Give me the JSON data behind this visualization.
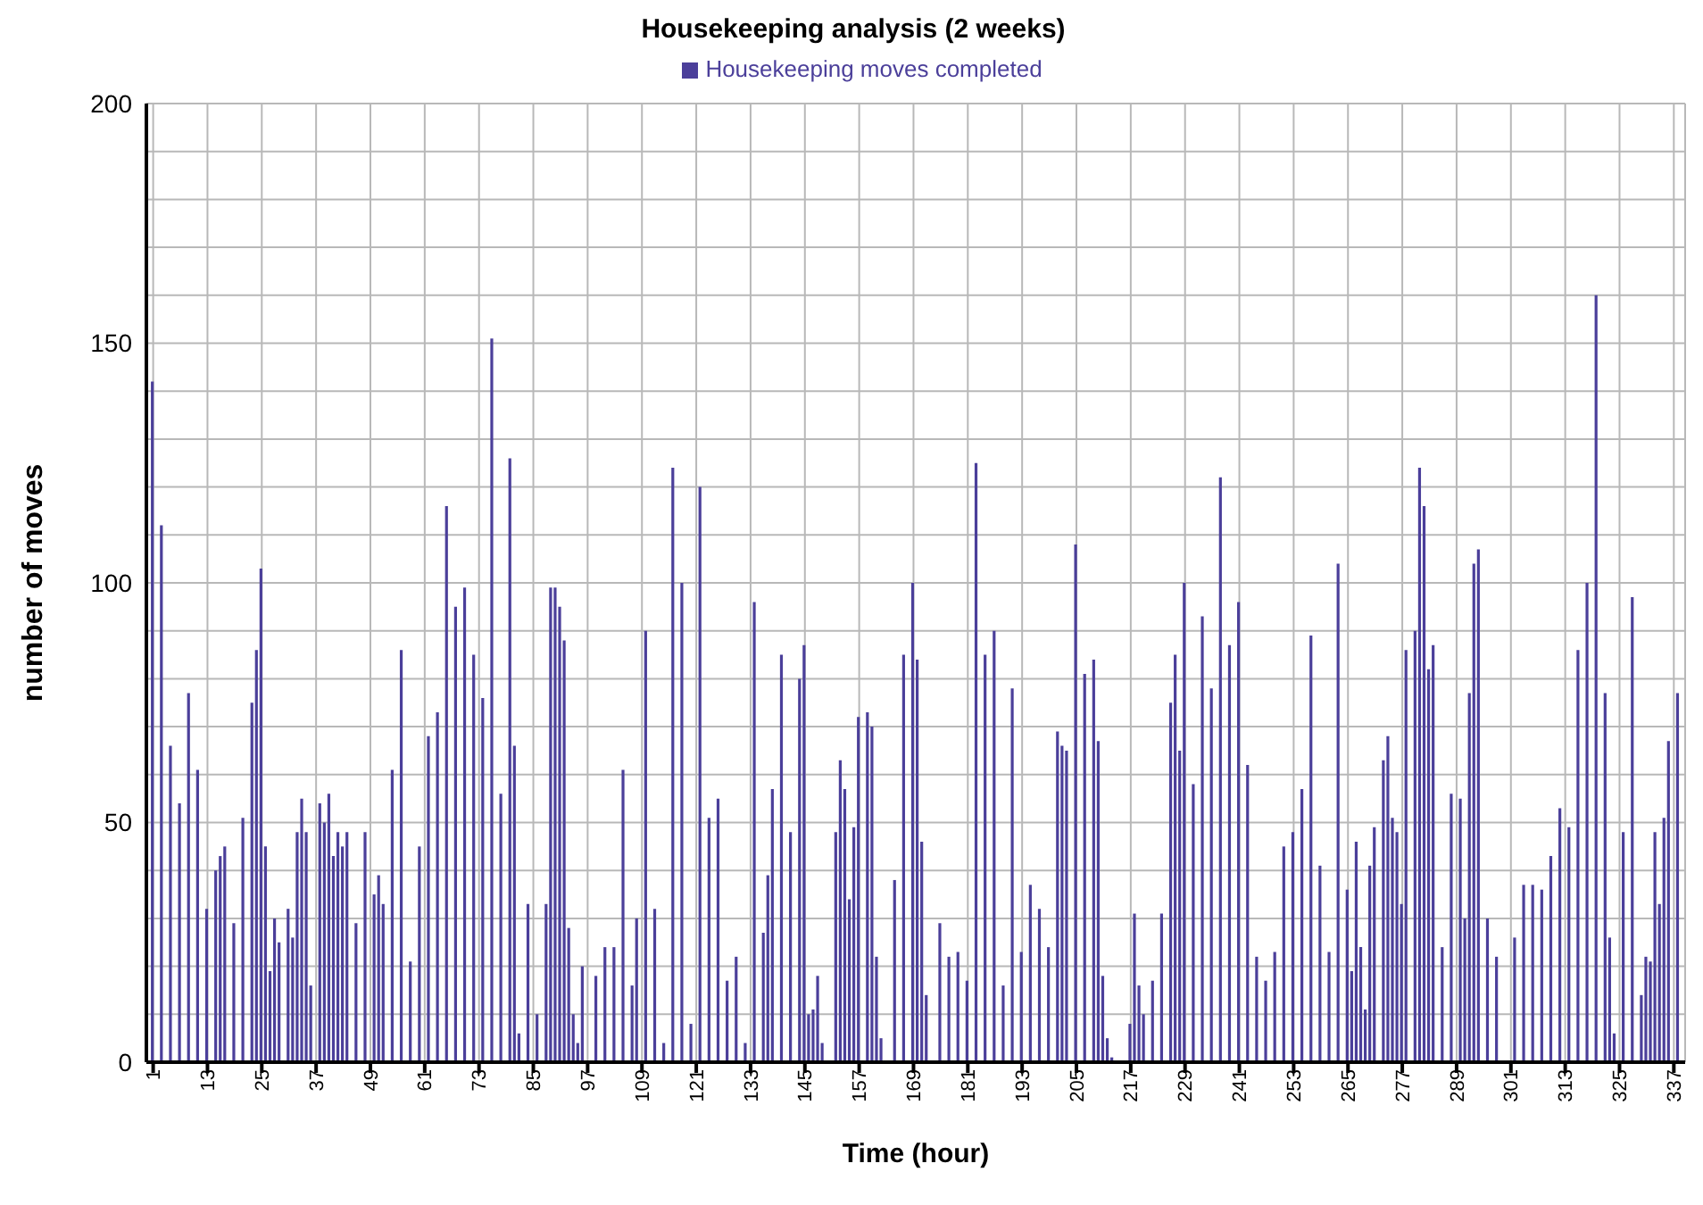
{
  "chart_data": {
    "type": "bar",
    "title": "Housekeeping analysis (2 weeks)",
    "xlabel": "Time (hour)",
    "ylabel": "number of moves",
    "categories": [
      "1",
      null,
      null,
      null,
      null,
      null,
      null,
      null,
      null,
      null,
      null,
      null,
      "13",
      null,
      null,
      null,
      null,
      null,
      null,
      null,
      null,
      null,
      null,
      null,
      "25",
      null,
      null,
      null,
      null,
      null,
      null,
      null,
      null,
      null,
      null,
      null,
      "37",
      null,
      null,
      null,
      null,
      null,
      null,
      null,
      null,
      null,
      null,
      null,
      "49",
      null,
      null,
      null,
      null,
      null,
      null,
      null,
      null,
      null,
      null,
      null,
      "61",
      null,
      null,
      null,
      null,
      null,
      null,
      null,
      null,
      null,
      null,
      null,
      "73",
      null,
      null,
      null,
      null,
      null,
      null,
      null,
      null,
      null,
      null,
      null,
      "85",
      null,
      null,
      null,
      null,
      null,
      null,
      null,
      null,
      null,
      null,
      null,
      "97",
      null,
      null,
      null,
      null,
      null,
      null,
      null,
      null,
      null,
      null,
      null,
      "109",
      null,
      null,
      null,
      null,
      null,
      null,
      null,
      null,
      null,
      null,
      null,
      "121",
      null,
      null,
      null,
      null,
      null,
      null,
      null,
      null,
      null,
      null,
      null,
      "133",
      null,
      null,
      null,
      null,
      null,
      null,
      null,
      null,
      null,
      null,
      null,
      "145",
      null,
      null,
      null,
      null,
      null,
      null,
      null,
      null,
      null,
      null,
      null,
      "157",
      null,
      null,
      null,
      null,
      null,
      null,
      null,
      null,
      null,
      null,
      null,
      "169",
      null,
      null,
      null,
      null,
      null,
      null,
      null,
      null,
      null,
      null,
      null,
      "181",
      null,
      null,
      null,
      null,
      null,
      null,
      null,
      null,
      null,
      null,
      null,
      "193",
      null,
      null,
      null,
      null,
      null,
      null,
      null,
      null,
      null,
      null,
      null,
      "205",
      null,
      null,
      null,
      null,
      null,
      null,
      null,
      null,
      null,
      null,
      null,
      "217",
      null,
      null,
      null,
      null,
      null,
      null,
      null,
      null,
      null,
      null,
      null,
      "229",
      null,
      null,
      null,
      null,
      null,
      null,
      null,
      null,
      null,
      null,
      null,
      "241",
      null,
      null,
      null,
      null,
      null,
      null,
      null,
      null,
      null,
      null,
      null,
      "253",
      null,
      null,
      null,
      null,
      null,
      null,
      null,
      null,
      null,
      null,
      null,
      "265",
      null,
      null,
      null,
      null,
      null,
      null,
      null,
      null,
      null,
      null,
      null,
      "277",
      null,
      null,
      null,
      null,
      null,
      null,
      null,
      null,
      null,
      null,
      null,
      "289",
      null,
      null,
      null,
      null,
      null,
      null,
      null,
      null,
      null,
      null,
      null,
      "301",
      null,
      null,
      null,
      null,
      null,
      null,
      null,
      null,
      null,
      null,
      null,
      "313",
      null,
      null,
      null,
      null,
      null,
      null,
      null,
      null,
      null,
      null,
      null,
      "325",
      null,
      null,
      null,
      null,
      null,
      null,
      null,
      null,
      null,
      null,
      null,
      "337",
      null,
      null
    ],
    "series": [
      {
        "name": "Housekeeping moves completed",
        "color": "#4b3f9a",
        "values": [
          142,
          null,
          112,
          null,
          66,
          null,
          54,
          null,
          77,
          null,
          61,
          null,
          32,
          null,
          40,
          43,
          45,
          null,
          29,
          null,
          51,
          null,
          75,
          86,
          103,
          45,
          19,
          30,
          25,
          null,
          32,
          26,
          48,
          55,
          48,
          16,
          null,
          54,
          50,
          56,
          43,
          48,
          45,
          48,
          null,
          29,
          null,
          48,
          null,
          35,
          39,
          33,
          null,
          61,
          null,
          86,
          null,
          21,
          null,
          45,
          null,
          68,
          null,
          73,
          null,
          116,
          null,
          95,
          null,
          99,
          null,
          85,
          null,
          76,
          null,
          151,
          null,
          56,
          null,
          126,
          66,
          6,
          null,
          33,
          null,
          10,
          null,
          33,
          99,
          99,
          95,
          88,
          28,
          10,
          4,
          20,
          null,
          null,
          18,
          null,
          24,
          null,
          24,
          null,
          61,
          null,
          16,
          30,
          null,
          90,
          null,
          32,
          null,
          4,
          null,
          124,
          null,
          100,
          null,
          8,
          null,
          120,
          null,
          51,
          null,
          55,
          null,
          17,
          null,
          22,
          null,
          4,
          null,
          96,
          null,
          27,
          39,
          57,
          null,
          85,
          null,
          48,
          null,
          80,
          87,
          10,
          11,
          18,
          4,
          null,
          null,
          48,
          63,
          57,
          34,
          49,
          72,
          null,
          73,
          70,
          22,
          5,
          null,
          null,
          38,
          null,
          85,
          null,
          100,
          84,
          46,
          14,
          null,
          null,
          29,
          null,
          22,
          null,
          23,
          null,
          17,
          null,
          125,
          null,
          85,
          null,
          90,
          null,
          16,
          null,
          78,
          null,
          23,
          null,
          37,
          null,
          32,
          null,
          24,
          null,
          69,
          66,
          65,
          null,
          108,
          null,
          81,
          null,
          84,
          67,
          18,
          5,
          1,
          null,
          null,
          null,
          8,
          31,
          16,
          10,
          null,
          17,
          null,
          31,
          null,
          75,
          85,
          65,
          100,
          null,
          58,
          null,
          93,
          null,
          78,
          null,
          122,
          null,
          87,
          null,
          96,
          null,
          62,
          null,
          22,
          null,
          17,
          null,
          23,
          null,
          45,
          null,
          48,
          null,
          57,
          null,
          89,
          null,
          41,
          null,
          23,
          null,
          104,
          null,
          36,
          19,
          46,
          24,
          11,
          41,
          49,
          null,
          63,
          68,
          51,
          48,
          33,
          86,
          null,
          90,
          124,
          116,
          82,
          87,
          null,
          24,
          null,
          56,
          null,
          55,
          30,
          77,
          104,
          107,
          null,
          30,
          null,
          22,
          null,
          null,
          null,
          26,
          null,
          37,
          null,
          37,
          null,
          36,
          null,
          43,
          null,
          53,
          null,
          49,
          null,
          86,
          null,
          100,
          null,
          160,
          null,
          77,
          26,
          6,
          null,
          48,
          null,
          97,
          null,
          14,
          22,
          21,
          48,
          33,
          51,
          67,
          null,
          77,
          null
        ]
      }
    ],
    "ylim": [
      0,
      200
    ],
    "yticks": [
      0,
      {
        "value": 10,
        "label": null
      },
      {
        "value": 20,
        "label": null
      },
      {
        "value": 30,
        "label": null
      },
      {
        "value": 40,
        "label": null
      },
      50,
      {
        "value": 60,
        "label": null
      },
      {
        "value": 70,
        "label": null
      },
      {
        "value": 80,
        "label": null
      },
      {
        "value": 90,
        "label": null
      },
      100,
      {
        "value": 110,
        "label": null
      },
      {
        "value": 120,
        "label": null
      },
      {
        "value": 130,
        "label": null
      },
      {
        "value": 140,
        "label": null
      },
      150,
      {
        "value": 160,
        "label": null
      },
      {
        "value": 170,
        "label": null
      },
      {
        "value": 180,
        "label": null
      },
      {
        "value": 190,
        "label": null
      },
      200
    ],
    "grid": true,
    "legend": "top"
  }
}
